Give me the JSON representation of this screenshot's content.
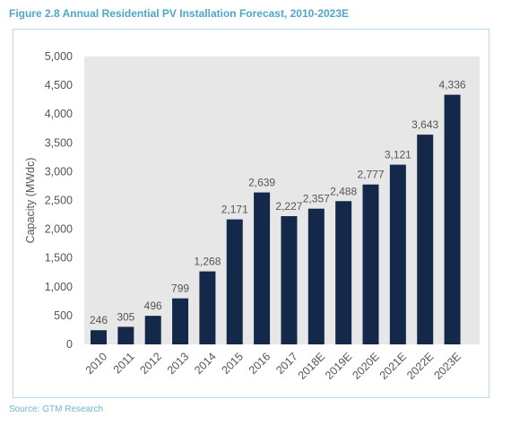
{
  "title": "Figure 2.8 Annual Residential PV Installation Forecast, 2010-2023E",
  "source": "Source:  GTM Research",
  "colors": {
    "title": "#4da7c9",
    "bar": "#14294a",
    "plot_background": "#e7e7e7",
    "frame": "#b9dcec"
  },
  "chart_data": {
    "type": "bar",
    "categories": [
      "2010",
      "2011",
      "2012",
      "2013",
      "2014",
      "2015",
      "2016",
      "2017",
      "2018E",
      "2019E",
      "2020E",
      "2021E",
      "2022E",
      "2023E"
    ],
    "values": [
      246,
      305,
      496,
      799,
      1268,
      2171,
      2639,
      2227,
      2357,
      2488,
      2777,
      3121,
      3643,
      4336
    ],
    "value_labels": [
      "246",
      "305",
      "496",
      "799",
      "1,268",
      "2,171",
      "2,639",
      "2,227",
      "2,357",
      "2,488",
      "2,777",
      "3,121",
      "3,643",
      "4,336"
    ],
    "title": "Figure 2.8 Annual Residential PV Installation Forecast, 2010-2023E",
    "xlabel": "",
    "ylabel": "Capacity (MWdc)",
    "ylim": [
      0,
      5000
    ],
    "yticks": [
      0,
      500,
      1000,
      1500,
      2000,
      2500,
      3000,
      3500,
      4000,
      4500,
      5000
    ],
    "ytick_labels": [
      "0",
      "500",
      "1,000",
      "1,500",
      "2,000",
      "2,500",
      "3,000",
      "3,500",
      "4,000",
      "4,500",
      "5,000"
    ],
    "grid": false,
    "legend": "none"
  }
}
